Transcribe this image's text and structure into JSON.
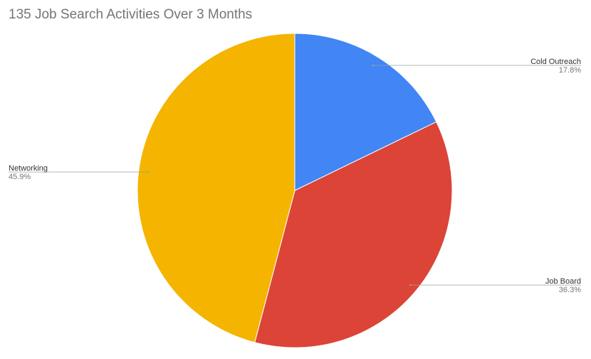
{
  "chart_data": {
    "type": "pie",
    "title": "135 Job Search Activities Over 3 Months",
    "slices": [
      {
        "label": "Cold Outreach",
        "value": 17.8,
        "display": "17.8%",
        "color": "#4285F4"
      },
      {
        "label": "Job Board",
        "value": 36.3,
        "display": "36.3%",
        "color": "#DB4437"
      },
      {
        "label": "Networking",
        "value": 45.9,
        "display": "45.9%",
        "color": "#F4B400"
      }
    ],
    "legend": "none"
  }
}
